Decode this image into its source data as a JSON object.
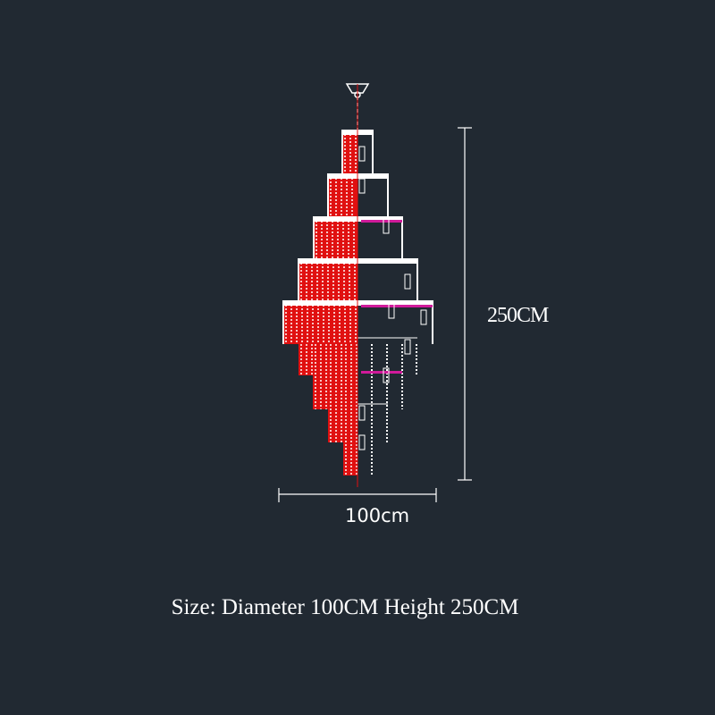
{
  "dimensions": {
    "height_label": "250CM",
    "width_label": "100cm"
  },
  "caption": "Size: Diameter 100CM Height 250CM",
  "colors": {
    "background": "#212932",
    "crystal": "#e01010",
    "line": "#ffffff",
    "accent": "#d01a9a"
  }
}
